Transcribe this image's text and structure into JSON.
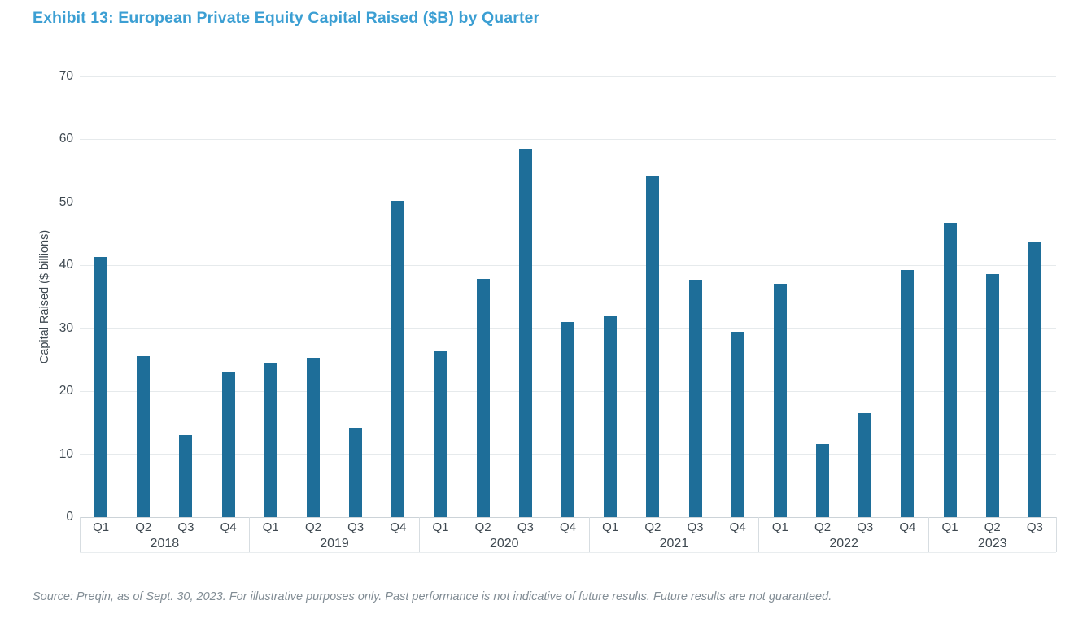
{
  "page": {
    "title": "Exhibit 13: European Private Equity Capital Raised ($B) by Quarter",
    "source_note": "Source: Preqin, as of Sept. 30, 2023. For illustrative purposes only. Past performance is not indicative of future results. Future results are not guaranteed."
  },
  "colors": {
    "title_blue": "#3C9FD3",
    "bar_fill": "#1E6E99",
    "gridline": "#E6EAEC",
    "axis_line": "#CCD3D8",
    "divider": "#D7DDE1",
    "bottom_line": "#E9EDEF",
    "tick_text": "#3E4850",
    "source_text": "#828D95"
  },
  "chart_data": {
    "type": "bar",
    "title": "Exhibit 13: European Private Equity Capital Raised ($B) by Quarter",
    "xlabel": "",
    "ylabel": "Capital Raised ($ billions)",
    "ylim": [
      0,
      70
    ],
    "yticks": [
      0,
      10,
      20,
      30,
      40,
      50,
      60,
      70
    ],
    "grid": "horizontal",
    "legend": "none",
    "categories": [
      "2018 Q1",
      "2018 Q2",
      "2018 Q3",
      "2018 Q4",
      "2019 Q1",
      "2019 Q2",
      "2019 Q3",
      "2019 Q4",
      "2020 Q1",
      "2020 Q2",
      "2020 Q3",
      "2020 Q4",
      "2021 Q1",
      "2021 Q2",
      "2021 Q3",
      "2021 Q4",
      "2022 Q1",
      "2022 Q2",
      "2022 Q3",
      "2022 Q4",
      "2023 Q1",
      "2023 Q2",
      "2023 Q3"
    ],
    "values": [
      41.3,
      25.6,
      13.0,
      23.0,
      24.4,
      25.3,
      14.2,
      50.2,
      26.3,
      37.8,
      58.5,
      31.0,
      32.0,
      54.1,
      37.7,
      29.5,
      37.1,
      11.6,
      16.5,
      39.2,
      46.8,
      38.6,
      43.6
    ],
    "groups": [
      {
        "year": "2018",
        "quarters": [
          "Q1",
          "Q2",
          "Q3",
          "Q4"
        ],
        "values": [
          41.3,
          25.6,
          13.0,
          23.0
        ]
      },
      {
        "year": "2019",
        "quarters": [
          "Q1",
          "Q2",
          "Q3",
          "Q4"
        ],
        "values": [
          24.4,
          25.3,
          14.2,
          50.2
        ]
      },
      {
        "year": "2020",
        "quarters": [
          "Q1",
          "Q2",
          "Q3",
          "Q4"
        ],
        "values": [
          26.3,
          37.8,
          58.5,
          31.0
        ]
      },
      {
        "year": "2021",
        "quarters": [
          "Q1",
          "Q2",
          "Q3",
          "Q4"
        ],
        "values": [
          32.0,
          54.1,
          37.7,
          29.5
        ]
      },
      {
        "year": "2022",
        "quarters": [
          "Q1",
          "Q2",
          "Q3",
          "Q4"
        ],
        "values": [
          37.1,
          11.6,
          16.5,
          39.2
        ]
      },
      {
        "year": "2023",
        "quarters": [
          "Q1",
          "Q2",
          "Q3"
        ],
        "values": [
          46.8,
          38.6,
          43.6
        ]
      }
    ]
  }
}
